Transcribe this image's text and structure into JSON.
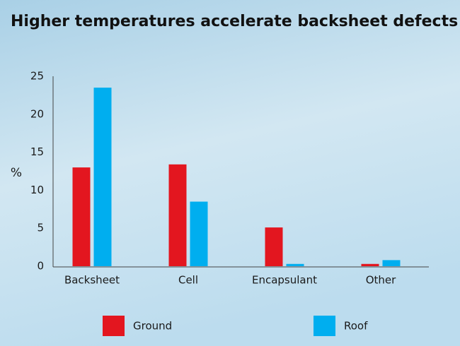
{
  "chart_data": {
    "type": "bar",
    "title": "Higher temperatures accelerate backsheet defects",
    "y_label": "%",
    "categories": [
      "Backsheet",
      "Cell",
      "Encapsulant",
      "Other"
    ],
    "series": [
      {
        "name": "Ground",
        "color": "#e3161f",
        "values": [
          13,
          13.4,
          5.1,
          0.3
        ]
      },
      {
        "name": "Roof",
        "color": "#00aeef",
        "values": [
          23.5,
          8.5,
          0.3,
          0.8
        ]
      }
    ],
    "ylim": [
      0,
      25
    ],
    "yticks": [
      0,
      5,
      10,
      15,
      20,
      25
    ],
    "grid": false
  }
}
